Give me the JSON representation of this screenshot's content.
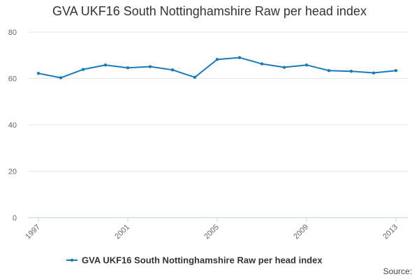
{
  "chart_data": {
    "type": "line",
    "title": "GVA UKF16 South Nottinghamshire Raw per head index",
    "xlabel": "",
    "ylabel": "",
    "ylim": [
      0,
      80
    ],
    "yticks": [
      "0",
      "20",
      "40",
      "60",
      "80"
    ],
    "xticks": [
      "1997",
      "2001",
      "2005",
      "2009",
      "2013"
    ],
    "grid": true,
    "legend_position": "bottom",
    "series": [
      {
        "name": "GVA UKF16 South Nottinghamshire Raw per head index",
        "color": "#1a7ab8",
        "x": [
          1997,
          1998,
          1999,
          2000,
          2001,
          2002,
          2003,
          2004,
          2005,
          2006,
          2007,
          2008,
          2009,
          2010,
          2011,
          2012,
          2013
        ],
        "values": [
          62.2,
          60.3,
          63.9,
          65.8,
          64.6,
          65.1,
          63.7,
          60.5,
          68.2,
          69.0,
          66.3,
          64.8,
          65.8,
          63.4,
          63.1,
          62.4,
          63.4
        ]
      }
    ]
  },
  "source_label": "Source:"
}
